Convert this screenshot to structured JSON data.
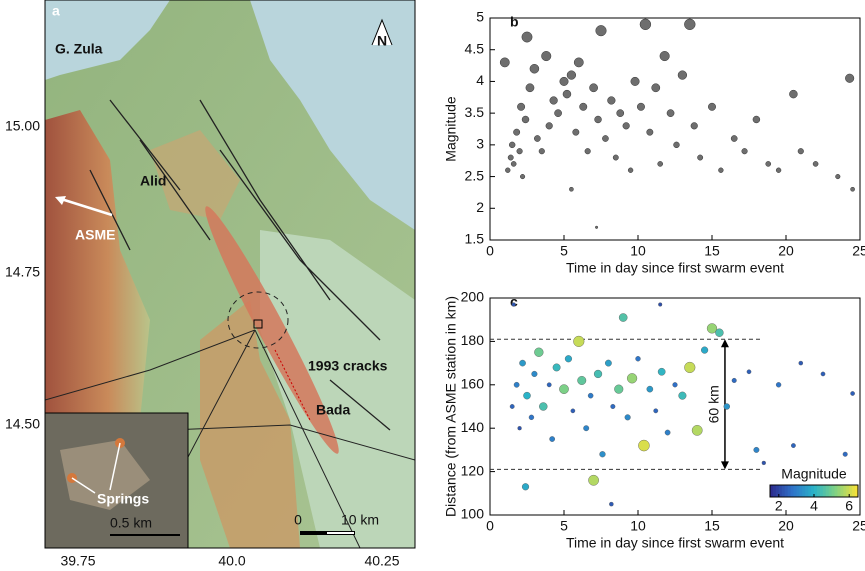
{
  "map": {
    "panel": "a",
    "labels": {
      "sea": "G. Zula",
      "alid": "Alid",
      "asme": "ASME",
      "cracks": "1993 cracks",
      "bada": "Bada",
      "springs": "Springs",
      "north": "N"
    },
    "lat_ticks": [
      "15.00",
      "14.75",
      "14.50"
    ],
    "lon_ticks": [
      "39.75",
      "40.0",
      "40.25"
    ],
    "scale": [
      "0",
      "10 km"
    ],
    "inset_scale": "0.5 km"
  },
  "chart_data": [
    {
      "type": "scatter",
      "panel": "b",
      "x_label": "Time in day since first swarm event",
      "y_label": "Magnitude",
      "color": "#6e6e6e",
      "xlim": [
        0,
        25
      ],
      "xticks": [
        0,
        5,
        10,
        15,
        20,
        25
      ],
      "ylim": [
        1.5,
        5
      ],
      "yticks": [
        1.5,
        2,
        2.5,
        3,
        3.5,
        4,
        4.5,
        5
      ],
      "x": [
        1.2,
        1.4,
        1.5,
        1.6,
        1.8,
        2.0,
        2.1,
        2.2,
        2.4,
        2.5,
        2.7,
        3.0,
        3.2,
        3.5,
        3.8,
        4.0,
        4.3,
        4.6,
        5.0,
        5.2,
        5.5,
        5.8,
        6.0,
        6.3,
        6.6,
        7.0,
        7.3,
        7.5,
        7.8,
        8.2,
        8.5,
        8.8,
        9.2,
        9.5,
        9.8,
        10.2,
        10.5,
        10.8,
        11.2,
        11.5,
        11.8,
        12.2,
        12.6,
        13.0,
        13.5,
        13.8,
        14.2,
        15.0,
        15.6,
        16.5,
        17.2,
        18.0,
        18.8,
        19.5,
        20.5,
        21.0,
        22.0,
        23.5,
        24.3,
        24.5,
        7.2,
        5.5,
        1.0
      ],
      "values": [
        2.6,
        2.8,
        3.0,
        2.7,
        3.2,
        2.9,
        3.6,
        2.5,
        3.4,
        4.7,
        3.9,
        4.2,
        3.1,
        2.9,
        4.4,
        3.3,
        3.7,
        3.5,
        4.0,
        3.8,
        4.1,
        3.2,
        4.3,
        3.6,
        2.9,
        3.9,
        3.4,
        4.8,
        3.1,
        3.7,
        2.8,
        3.5,
        3.3,
        2.6,
        4.0,
        3.6,
        4.9,
        3.2,
        3.9,
        2.7,
        4.4,
        3.5,
        3.0,
        4.1,
        4.9,
        3.3,
        2.8,
        3.6,
        2.6,
        3.1,
        2.9,
        3.4,
        2.7,
        2.6,
        3.8,
        2.9,
        2.7,
        2.5,
        4.05,
        2.3,
        1.7,
        2.3,
        4.3
      ]
    },
    {
      "type": "scatter",
      "panel": "c",
      "x_label": "Time in day since first swarm event",
      "y_label": "Distance (from ASME station in km)",
      "xlim": [
        0,
        25
      ],
      "xticks": [
        0,
        5,
        10,
        15,
        20,
        25
      ],
      "ylim": [
        100,
        200
      ],
      "yticks": [
        100,
        120,
        140,
        160,
        180,
        200
      ],
      "reference_lines": [
        181,
        121
      ],
      "annotation": "60 km",
      "colorbar": {
        "label": "Magnitude",
        "lim": [
          1.5,
          6.5
        ],
        "ticks": [
          2,
          4,
          6
        ],
        "colors": [
          "#2c2d8f",
          "#2f73c9",
          "#2ab3c8",
          "#7fd184",
          "#f5e23a"
        ]
      },
      "x": [
        1.5,
        1.8,
        2.0,
        2.2,
        2.5,
        2.8,
        3.0,
        3.3,
        3.6,
        4.0,
        4.2,
        4.5,
        5.0,
        5.3,
        5.6,
        6.0,
        6.2,
        6.5,
        6.8,
        7.0,
        7.3,
        7.6,
        8.0,
        8.3,
        8.7,
        9.0,
        9.3,
        9.6,
        10.0,
        10.4,
        10.8,
        11.2,
        11.6,
        12.0,
        12.5,
        13.0,
        13.5,
        14.0,
        14.5,
        15.0,
        15.5,
        16.0,
        16.5,
        17.5,
        18.0,
        18.5,
        19.5,
        20.5,
        21.0,
        22.5,
        24.0,
        24.5,
        1.6,
        11.5,
        2.4,
        8.2
      ],
      "values": [
        150,
        160,
        140,
        170,
        155,
        145,
        165,
        175,
        150,
        160,
        135,
        168,
        158,
        172,
        148,
        180,
        162,
        140,
        155,
        116,
        165,
        128,
        170,
        150,
        158,
        191,
        145,
        163,
        172,
        132,
        158,
        148,
        166,
        138,
        160,
        155,
        168,
        139,
        176,
        186,
        184,
        150,
        162,
        166,
        130,
        124,
        160,
        132,
        170,
        165,
        128,
        156,
        197,
        197,
        113,
        105
      ],
      "magnitude": [
        2.5,
        3,
        2.2,
        3.5,
        4,
        2.8,
        3.2,
        5,
        4.5,
        2.5,
        3,
        4.2,
        5.2,
        3.8,
        2.4,
        6,
        4.8,
        3.1,
        2.9,
        5.8,
        4.4,
        3.3,
        3.6,
        2.6,
        4.9,
        4.6,
        3.2,
        5.5,
        2.8,
        6.2,
        3.5,
        2.5,
        4.1,
        3.0,
        2.7,
        4.3,
        6,
        5.8,
        3.8,
        5.5,
        4.5,
        3.4,
        2.6,
        2.4,
        3.1,
        2.2,
        2.8,
        2.5,
        2.3,
        2.4,
        2.6,
        2.4,
        2.2,
        2.1,
        3.8,
        2.3
      ]
    }
  ]
}
